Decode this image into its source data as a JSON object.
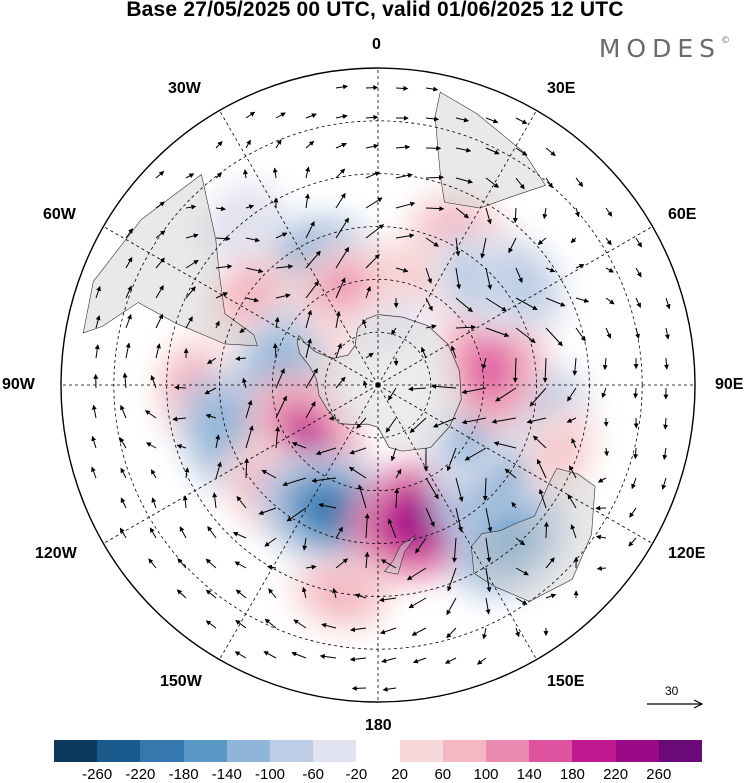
{
  "title": "Base 27/05/2025 00 UTC, valid 01/06/2025 12 UTC",
  "brand": "MODES",
  "brand_mark": "©",
  "longitude_labels": {
    "lon_0": "0",
    "lon_30e": "30E",
    "lon_60e": "60E",
    "lon_90e": "90E",
    "lon_120e": "120E",
    "lon_150e": "150E",
    "lon_180": "180",
    "lon_150w": "150W",
    "lon_120w": "120W",
    "lon_90w": "90W",
    "lon_60w": "60W",
    "lon_30w": "30W"
  },
  "reference_vector": {
    "value": "30"
  },
  "colorbar": {
    "colors": [
      "#0d3a5c",
      "#1a5a8c",
      "#3478ae",
      "#5a97c5",
      "#8fb5d8",
      "#bccde5",
      "#e2e3f0",
      "#ffffff",
      "#f8d9d9",
      "#f3b8c3",
      "#ea8ab0",
      "#de52a0",
      "#c0188f",
      "#9a0a88",
      "#6a0a78"
    ],
    "tick_labels": [
      "-260",
      "-220",
      "-180",
      "-140",
      "-100",
      "-60",
      "-20",
      "20",
      "60",
      "100",
      "140",
      "180",
      "220",
      "260"
    ]
  },
  "anomaly_centers": [
    {
      "lon": 30,
      "lat": -42,
      "value": 120
    },
    {
      "lon": 15,
      "lat": -58,
      "value": 60
    },
    {
      "lon": 5,
      "lat": -72,
      "value": -40
    },
    {
      "lon": -12,
      "lat": -60,
      "value": 80
    },
    {
      "lon": -32,
      "lat": -52,
      "value": -180
    },
    {
      "lon": -20,
      "lat": -60,
      "value": 100
    },
    {
      "lon": -55,
      "lat": -45,
      "value": 80
    },
    {
      "lon": -65,
      "lat": -70,
      "value": 60
    },
    {
      "lon": -85,
      "lat": -62,
      "value": -140
    },
    {
      "lon": -92,
      "lat": -38,
      "value": 100
    },
    {
      "lon": -108,
      "lat": -45,
      "value": -140
    },
    {
      "lon": -125,
      "lat": -65,
      "value": 180
    },
    {
      "lon": -135,
      "lat": -48,
      "value": 120
    },
    {
      "lon": -160,
      "lat": -52,
      "value": -220
    },
    {
      "lon": 160,
      "lat": -50,
      "value": 240
    },
    {
      "lon": 130,
      "lat": -48,
      "value": -180
    },
    {
      "lon": 120,
      "lat": -60,
      "value": -120
    },
    {
      "lon": 100,
      "lat": -40,
      "value": -100
    },
    {
      "lon": 140,
      "lat": -32,
      "value": -160
    },
    {
      "lon": 70,
      "lat": -55,
      "value": 160
    },
    {
      "lon": 82,
      "lat": -58,
      "value": 140
    },
    {
      "lon": 45,
      "lat": -48,
      "value": -120
    },
    {
      "lon": 55,
      "lat": -40,
      "value": -100
    },
    {
      "lon": -170,
      "lat": -30,
      "value": 80
    },
    {
      "lon": 110,
      "lat": -35,
      "value": 60
    },
    {
      "lon": -40,
      "lat": -30,
      "value": -60
    }
  ]
}
